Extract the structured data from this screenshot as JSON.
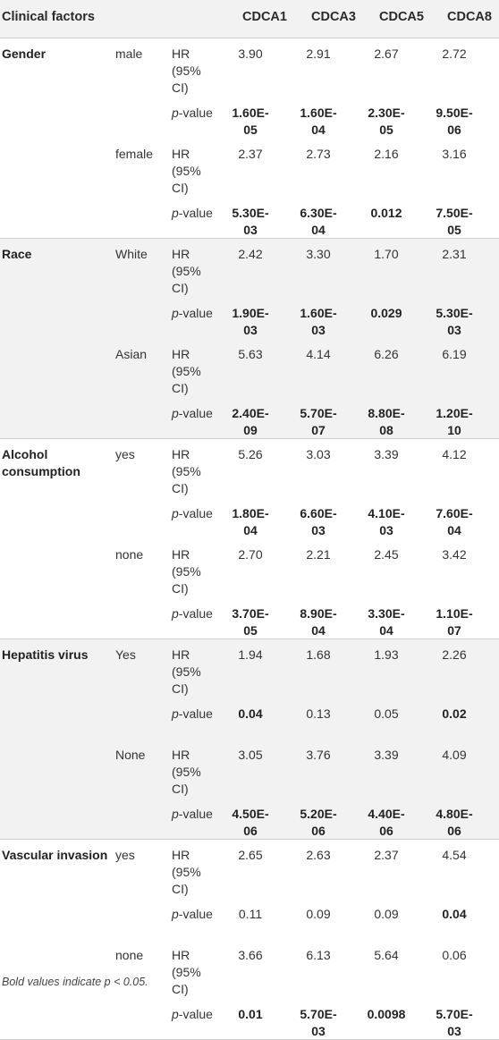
{
  "table": {
    "headers": [
      "Clinical factors",
      "CDCA1",
      "CDCA3",
      "CDCA5",
      "CDCA8"
    ],
    "hr_label": "HR (95% CI)",
    "p_label_italic": "p",
    "p_label_rest": "-value",
    "groups": [
      {
        "factor": "Gender",
        "subgroups": [
          {
            "label": "male",
            "hr": [
              "3.90",
              "2.91",
              "2.67",
              "2.72"
            ],
            "p": [
              "1.60E-05",
              "1.60E-04",
              "2.30E-05",
              "9.50E-06"
            ],
            "p_bold": [
              true,
              true,
              true,
              true
            ]
          },
          {
            "label": "female",
            "hr": [
              "2.37",
              "2.73",
              "2.16",
              "3.16"
            ],
            "p": [
              "5.30E-03",
              "6.30E-04",
              "0.012",
              "7.50E-05"
            ],
            "p_bold": [
              true,
              true,
              true,
              true
            ]
          }
        ]
      },
      {
        "factor": "Race",
        "subgroups": [
          {
            "label": "White",
            "hr": [
              "2.42",
              "3.30",
              "1.70",
              "2.31"
            ],
            "p": [
              "1.90E-03",
              "1.60E-03",
              "0.029",
              "5.30E-03"
            ],
            "p_bold": [
              true,
              true,
              true,
              true
            ]
          },
          {
            "label": "Asian",
            "hr": [
              "5.63",
              "4.14",
              "6.26",
              "6.19"
            ],
            "p": [
              "2.40E-09",
              "5.70E-07",
              "8.80E-08",
              "1.20E-10"
            ],
            "p_bold": [
              true,
              true,
              true,
              true
            ]
          }
        ]
      },
      {
        "factor": "Alcohol consumption",
        "subgroups": [
          {
            "label": "yes",
            "hr": [
              "5.26",
              "3.03",
              "3.39",
              "4.12"
            ],
            "p": [
              "1.80E-04",
              "6.60E-03",
              "4.10E-03",
              "7.60E-04"
            ],
            "p_bold": [
              true,
              true,
              true,
              true
            ]
          },
          {
            "label": "none",
            "hr": [
              "2.70",
              "2.21",
              "2.45",
              "3.42"
            ],
            "p": [
              "3.70E-05",
              "8.90E-04",
              "3.30E-04",
              "1.10E-07"
            ],
            "p_bold": [
              true,
              true,
              true,
              true
            ]
          }
        ]
      },
      {
        "factor": "Hepatitis virus",
        "subgroups": [
          {
            "label": "Yes",
            "hr": [
              "1.94",
              "1.68",
              "1.93",
              "2.26"
            ],
            "p": [
              "0.04",
              "0.13",
              "0.05",
              "0.02"
            ],
            "p_bold": [
              true,
              false,
              false,
              true
            ]
          },
          {
            "label": "None",
            "hr": [
              "3.05",
              "3.76",
              "3.39",
              "4.09"
            ],
            "p": [
              "4.50E-06",
              "5.20E-06",
              "4.40E-06",
              "4.80E-06"
            ],
            "p_bold": [
              true,
              true,
              true,
              true
            ]
          }
        ]
      },
      {
        "factor": "Vascular invasion",
        "subgroups": [
          {
            "label": "yes",
            "hr": [
              "2.65",
              "2.63",
              "2.37",
              "4.54"
            ],
            "p": [
              "0.11",
              "0.09",
              "0.09",
              "0.04"
            ],
            "p_bold": [
              false,
              false,
              false,
              true
            ]
          },
          {
            "label": "none",
            "hr": [
              "3.66",
              "6.13",
              "5.64",
              "0.06"
            ],
            "p": [
              "0.01",
              "5.70E-03",
              "0.0098",
              "5.70E-03"
            ],
            "p_bold": [
              true,
              true,
              true,
              true
            ]
          }
        ]
      }
    ]
  },
  "footnote": {
    "prefix": "Bold values indicate ",
    "condition": "p < 0.05."
  }
}
